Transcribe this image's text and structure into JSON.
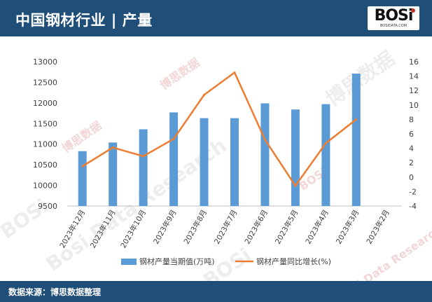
{
  "header": {
    "title": "中国钢材行业 | 产量",
    "logo_text": "BOSi",
    "logo_sub": "BOSIDATA.COM"
  },
  "footer": {
    "source": "数据来源：博思数据整理"
  },
  "watermark": {
    "logo": "BOSi",
    "cn": "博思数据",
    "en": "Bosi Data Research"
  },
  "colors": {
    "header": "#1f4e79",
    "bar": "#5b9bd5",
    "line": "#ed7d31",
    "grid": "#d9d9d9"
  },
  "chart_data": {
    "type": "bar",
    "categories": [
      "2023年12月",
      "2023年11月",
      "2023年10月",
      "2023年9月",
      "2023年8月",
      "2023年7月",
      "2023年6月",
      "2023年5月",
      "2023年4月",
      "2023年3月",
      "2023年2月"
    ],
    "series": [
      {
        "name": "钢材产量当期值(万吨)",
        "type": "bar",
        "axis": "left",
        "values": [
          10830,
          11040,
          11360,
          11770,
          11630,
          11630,
          11990,
          11840,
          11970,
          12710,
          null
        ]
      },
      {
        "name": "钢材产量同比增长(%)",
        "type": "line",
        "axis": "right",
        "values": [
          1.5,
          4.1,
          2.9,
          5.3,
          11.4,
          14.5,
          5.2,
          -1.2,
          4.7,
          8.0,
          null
        ]
      }
    ],
    "y_left": {
      "ylim": [
        9500,
        13000
      ],
      "ticks": [
        "9500",
        "10000",
        "10500",
        "11000",
        "11500",
        "12000",
        "12500",
        "13000"
      ]
    },
    "y_right": {
      "ylim": [
        -4,
        16
      ],
      "ticks": [
        "-4",
        "-2",
        "0",
        "2",
        "4",
        "6",
        "8",
        "10",
        "12",
        "14",
        "16"
      ]
    },
    "grid": false,
    "legend": "bottom"
  }
}
